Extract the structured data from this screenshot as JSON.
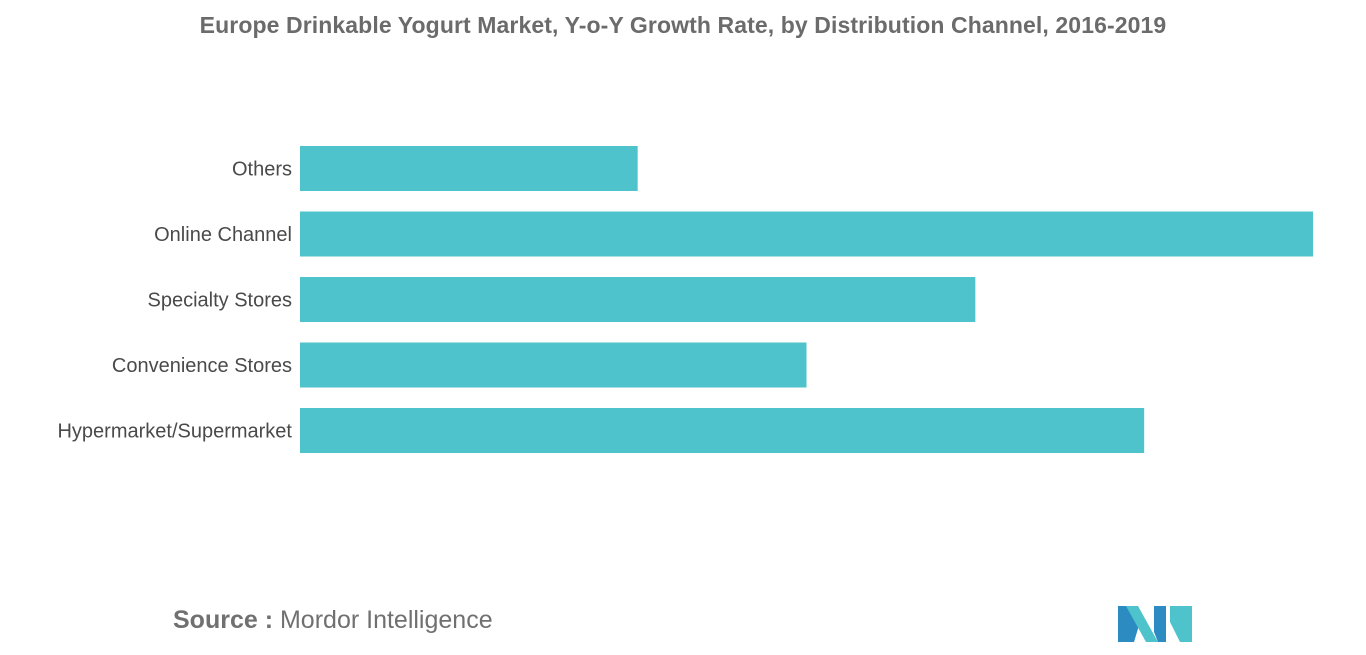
{
  "chart_data": {
    "type": "bar",
    "orientation": "horizontal",
    "title": "Europe Drinkable Yogurt Market, Y-o-Y Growth Rate, by Distribution Channel, 2016-2019",
    "categories": [
      "Others",
      "Online Channel",
      "Specialty Stores",
      "Convenience Stores",
      "Hypermarket/Supermarket"
    ],
    "values": [
      3.0,
      9.0,
      6.0,
      4.5,
      7.5
    ],
    "xlim": [
      0,
      9.0
    ],
    "bar_color": "#4fc3cb",
    "grid": false,
    "legend": "none"
  },
  "source": {
    "key": "Source :",
    "value": "Mordor Intelligence"
  },
  "logo": {
    "icon": "mordor-intelligence-logo",
    "colors": [
      "#2c8cc2",
      "#4fc3cb"
    ]
  }
}
